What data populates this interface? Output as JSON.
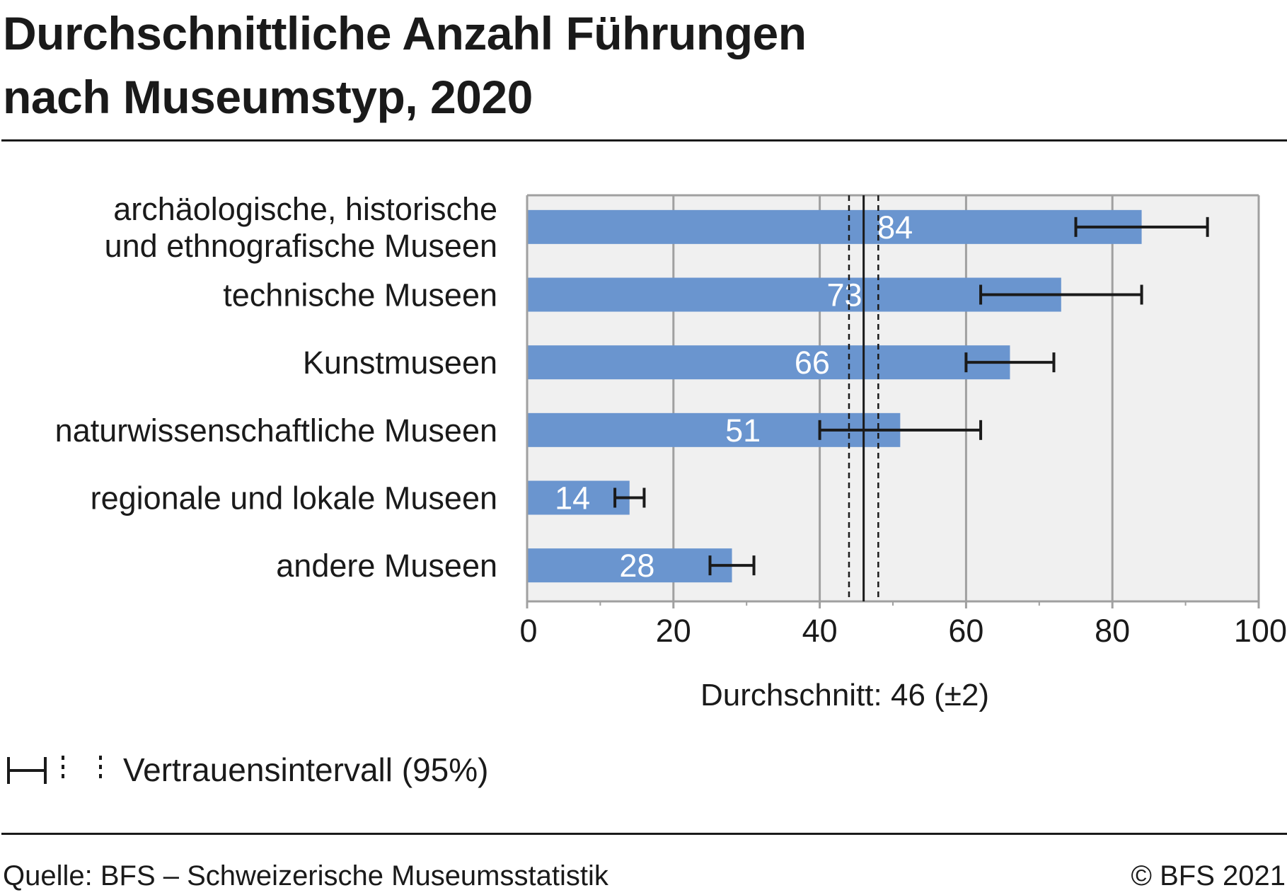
{
  "header": {
    "title_line1": "Durchschnittliche Anzahl Führungen",
    "title_line2": "nach Museumstyp, 2020"
  },
  "legend": {
    "ci_label": "Vertrauensintervall (95%)",
    "icon": "confidence-interval-icon"
  },
  "footer": {
    "source": "Quelle: BFS – Schweizerische Museumsstatistik",
    "copyright": "© BFS 2021"
  },
  "colors": {
    "bar": "#6a95cf",
    "plot_bg": "#f0f0f0",
    "grid": "#a0a0a0",
    "text": "#1a1a1a",
    "error": "#1a1a1a"
  },
  "chart_data": {
    "type": "bar",
    "orientation": "horizontal",
    "title": "Durchschnittliche Anzahl Führungen nach Museumstyp, 2020",
    "categories": [
      [
        "archäologische, historische",
        "und ethnografische Museen"
      ],
      [
        "technische Museen"
      ],
      [
        "Kunstmuseen"
      ],
      [
        "naturwissenschaftliche Museen"
      ],
      [
        "regionale und lokale Museen"
      ],
      [
        "andere Museen"
      ]
    ],
    "values": [
      84,
      73,
      66,
      51,
      14,
      28
    ],
    "value_labels": [
      "84",
      "73",
      "66",
      "51",
      "14",
      "28"
    ],
    "ci_low": [
      75,
      62,
      60,
      40,
      12,
      25
    ],
    "ci_high": [
      93,
      84,
      72,
      62,
      16,
      31
    ],
    "average": {
      "value": 46,
      "ci_low": 44,
      "ci_high": 48,
      "label": "Durchschnitt: 46 (±2)"
    },
    "xlim": [
      0,
      100
    ],
    "xticks": [
      0,
      20,
      40,
      60,
      80,
      100
    ],
    "xtick_labels": [
      "0",
      "20",
      "40",
      "60",
      "80",
      "100"
    ],
    "minor_xticks": [
      10,
      30,
      50,
      70,
      90
    ],
    "xlabel": "",
    "ylabel": "",
    "grid": true,
    "legend_position": "bottom-left"
  }
}
